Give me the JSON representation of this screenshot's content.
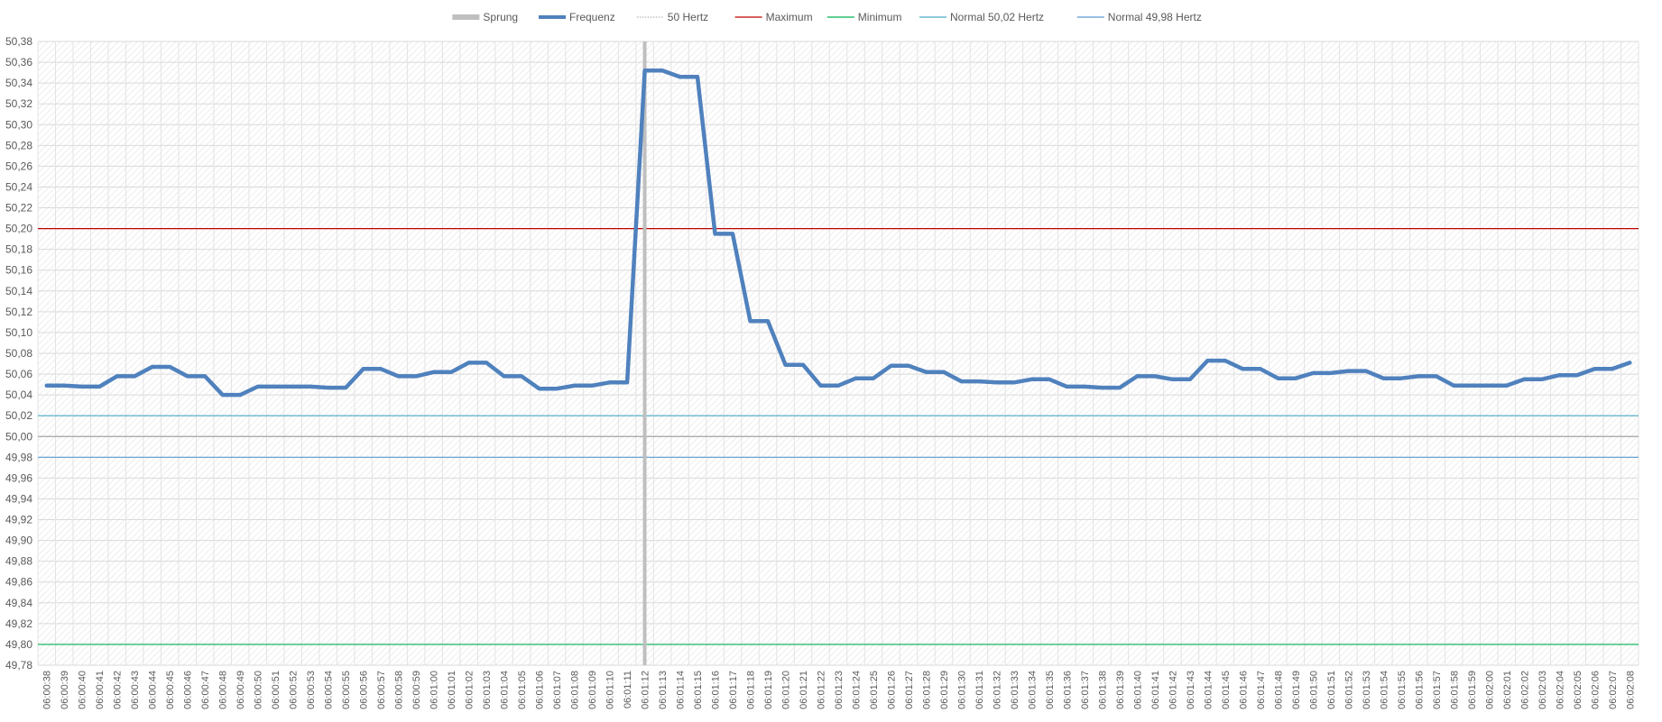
{
  "chart_data": {
    "type": "line",
    "title": "",
    "xlabel": "",
    "ylabel": "",
    "ylim": [
      49.78,
      50.38
    ],
    "ytick_step": 0.02,
    "yticks": [
      "50,38",
      "50,36",
      "50,34",
      "50,32",
      "50,30",
      "50,28",
      "50,26",
      "50,24",
      "50,22",
      "50,20",
      "50,18",
      "50,16",
      "50,14",
      "50,12",
      "50,10",
      "50,08",
      "50,06",
      "50,04",
      "50,02",
      "50,00",
      "49,98",
      "49,96",
      "49,94",
      "49,92",
      "49,90",
      "49,88",
      "49,86",
      "49,84",
      "49,82",
      "49,80",
      "49,78"
    ],
    "grid": true,
    "legend_position": "top",
    "categories": [
      "06:00:38",
      "06:00:39",
      "06:00:40",
      "06:00:41",
      "06:00:42",
      "06:00:43",
      "06:00:44",
      "06:00:45",
      "06:00:46",
      "06:00:47",
      "06:00:48",
      "06:00:49",
      "06:00:50",
      "06:00:51",
      "06:00:52",
      "06:00:53",
      "06:00:54",
      "06:00:55",
      "06:00:56",
      "06:00:57",
      "06:00:58",
      "06:00:59",
      "06:01:00",
      "06:01:01",
      "06:01:02",
      "06:01:03",
      "06:01:04",
      "06:01:05",
      "06:01:06",
      "06:01:07",
      "06:01:08",
      "06:01:09",
      "06:01:10",
      "06:01:11",
      "06:01:12",
      "06:01:13",
      "06:01:14",
      "06:01:15",
      "06:01:16",
      "06:01:17",
      "06:01:18",
      "06:01:19",
      "06:01:20",
      "06:01:21",
      "06:01:22",
      "06:01:23",
      "06:01:24",
      "06:01:25",
      "06:01:26",
      "06:01:27",
      "06:01:28",
      "06:01:29",
      "06:01:30",
      "06:01:31",
      "06:01:32",
      "06:01:33",
      "06:01:34",
      "06:01:35",
      "06:01:36",
      "06:01:37",
      "06:01:38",
      "06:01:39",
      "06:01:40",
      "06:01:41",
      "06:01:42",
      "06:01:43",
      "06:01:44",
      "06:01:45",
      "06:01:46",
      "06:01:47",
      "06:01:48",
      "06:01:49",
      "06:01:50",
      "06:01:51",
      "06:01:52",
      "06:01:53",
      "06:01:54",
      "06:01:55",
      "06:01:56",
      "06:01:57",
      "06:01:58",
      "06:01:59",
      "06:02:00",
      "06:02:01",
      "06:02:02",
      "06:02:03",
      "06:02:04",
      "06:02:05",
      "06:02:06",
      "06:02:07",
      "06:02:08"
    ],
    "series": [
      {
        "name": "Frequenz",
        "color": "#4f81bd",
        "values": [
          50.049,
          50.049,
          50.048,
          50.048,
          50.058,
          50.058,
          50.067,
          50.067,
          50.058,
          50.058,
          50.04,
          50.04,
          50.048,
          50.048,
          50.048,
          50.048,
          50.047,
          50.047,
          50.065,
          50.065,
          50.058,
          50.058,
          50.062,
          50.062,
          50.071,
          50.071,
          50.058,
          50.058,
          50.046,
          50.046,
          50.049,
          50.049,
          50.052,
          50.052,
          50.352,
          50.352,
          50.346,
          50.346,
          50.195,
          50.195,
          50.111,
          50.111,
          50.069,
          50.069,
          50.049,
          50.049,
          50.056,
          50.056,
          50.068,
          50.068,
          50.062,
          50.062,
          50.053,
          50.053,
          50.052,
          50.052,
          50.055,
          50.055,
          50.048,
          50.048,
          50.047,
          50.047,
          50.058,
          50.058,
          50.055,
          50.055,
          50.073,
          50.073,
          50.065,
          50.065,
          50.056,
          50.056,
          50.061,
          50.061,
          50.063,
          50.063,
          50.056,
          50.056,
          50.058,
          50.058,
          50.049,
          50.049,
          50.049,
          50.049,
          50.055,
          50.055,
          50.059,
          50.059,
          50.065,
          50.065,
          50.071
        ]
      }
    ],
    "reference_lines": [
      {
        "name": "50 Hertz",
        "value": 50.0,
        "color": "#a6a6a6"
      },
      {
        "name": "Maximum",
        "value": 50.2,
        "color": "#c00000"
      },
      {
        "name": "Minimum",
        "value": 49.8,
        "color": "#00b050"
      },
      {
        "name": "Normal 50,02 Hertz",
        "value": 50.02,
        "color": "#4bacc6"
      },
      {
        "name": "Normal 49,98 Hertz",
        "value": 49.98,
        "color": "#5b9bd5"
      }
    ],
    "marker": {
      "name": "Sprung",
      "category": "06:01:12",
      "color": "#bfbfbf"
    },
    "legend": [
      {
        "name": "Sprung",
        "color": "#bfbfbf",
        "style": "thick-light"
      },
      {
        "name": "Frequenz",
        "color": "#4f81bd",
        "style": "thick"
      },
      {
        "name": "50 Hertz",
        "color": "#a6a6a6",
        "style": "dotted"
      },
      {
        "name": "Maximum",
        "color": "#c00000",
        "style": "thin"
      },
      {
        "name": "Minimum",
        "color": "#00b050",
        "style": "thin"
      },
      {
        "name": "Normal 50,02 Hertz",
        "color": "#4bacc6",
        "style": "thin"
      },
      {
        "name": "Normal 49,98 Hertz",
        "color": "#5b9bd5",
        "style": "thin"
      }
    ]
  }
}
